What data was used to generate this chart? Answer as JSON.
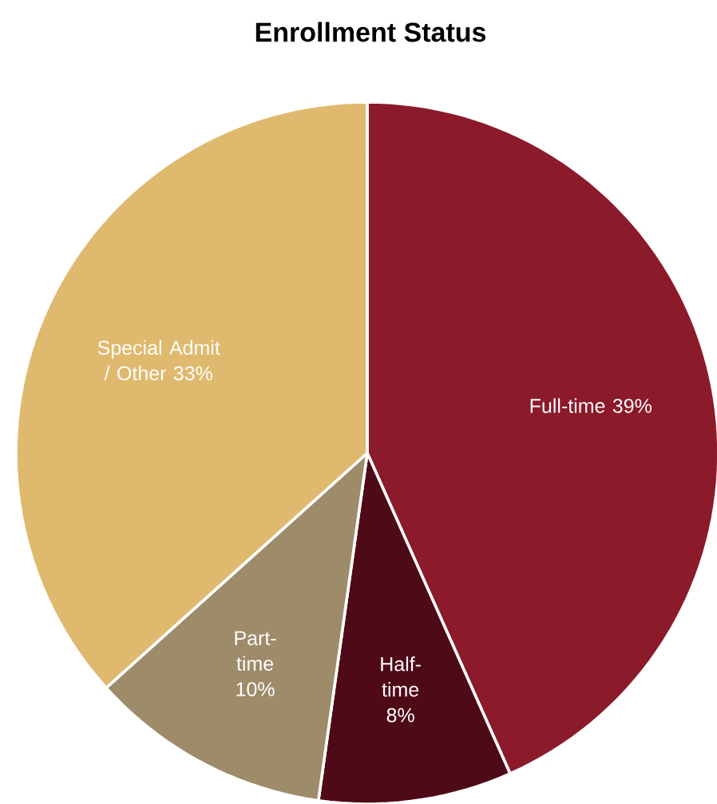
{
  "chart_data": {
    "type": "pie",
    "title": "Enrollment Status",
    "categories": [
      "Full-time",
      "Half-time",
      "Part-time",
      "Special Admit / Other"
    ],
    "values": [
      39,
      8,
      10,
      33
    ],
    "value_labels": [
      "39%",
      "8%",
      "10%",
      "33%"
    ],
    "colors": [
      "#8b1a2b",
      "#4f0a17",
      "#9e8b6a",
      "#dfb96e"
    ]
  }
}
